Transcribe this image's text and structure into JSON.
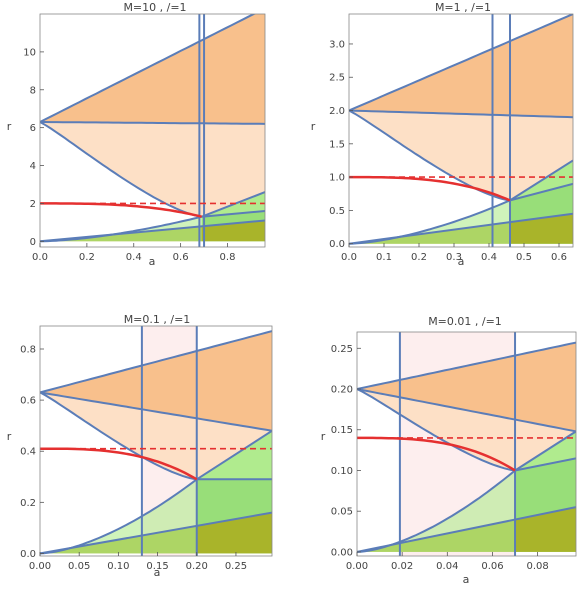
{
  "chart_data": [
    {
      "type": "area",
      "title": "M=10 , /=1",
      "xlabel": "a",
      "ylabel": "r",
      "xlim": [
        0,
        0.96
      ],
      "ylim": [
        -0.3,
        12
      ],
      "xticks": [
        "0.0",
        "0.2",
        "0.4",
        "0.6",
        "0.8"
      ],
      "xtick_values": [
        0,
        0.2,
        0.4,
        0.6,
        0.8
      ],
      "yticks": [
        "0",
        "2",
        "4",
        "6",
        "8",
        "10"
      ],
      "ytick_values": [
        0,
        2,
        4,
        6,
        8,
        10
      ],
      "r_top": 6.3,
      "r_red": 2.0,
      "a_crit": 0.69,
      "r_crit": 1.3,
      "vlines": [
        0.68,
        0.7
      ],
      "upper_end": 12.3,
      "mid_end": 6.2,
      "green_end": [
        2.6,
        1.6,
        1.1
      ],
      "pink_band": null
    },
    {
      "type": "area",
      "title": "M=1 , /=1",
      "xlabel": "a",
      "ylabel": "r",
      "xlim": [
        0,
        0.64
      ],
      "ylim": [
        -0.05,
        3.45
      ],
      "xticks": [
        "0.0",
        "0.1",
        "0.2",
        "0.3",
        "0.4",
        "0.5",
        "0.6"
      ],
      "xtick_values": [
        0,
        0.1,
        0.2,
        0.3,
        0.4,
        0.5,
        0.6
      ],
      "yticks": [
        "0.0",
        "0.5",
        "1.0",
        "1.5",
        "2.0",
        "2.5",
        "3.0"
      ],
      "ytick_values": [
        0,
        0.5,
        1.0,
        1.5,
        2.0,
        2.5,
        3.0
      ],
      "r_top": 2.0,
      "r_red": 1.0,
      "a_crit": 0.46,
      "r_crit": 0.65,
      "vlines": [
        0.41,
        0.46
      ],
      "upper_end": 3.45,
      "mid_end": 1.9,
      "green_end": [
        1.25,
        0.9,
        0.45
      ],
      "pink_band": null
    },
    {
      "type": "area",
      "title": "M=0.1 , /=1",
      "xlabel": "a",
      "ylabel": "r",
      "xlim": [
        0,
        0.296
      ],
      "ylim": [
        -0.01,
        0.89
      ],
      "xticks": [
        "0.00",
        "0.05",
        "0.10",
        "0.15",
        "0.20",
        "0.25"
      ],
      "xtick_values": [
        0,
        0.05,
        0.1,
        0.15,
        0.2,
        0.25
      ],
      "yticks": [
        "0.0",
        "0.2",
        "0.4",
        "0.6",
        "0.8"
      ],
      "ytick_values": [
        0,
        0.2,
        0.4,
        0.6,
        0.8
      ],
      "r_top": 0.63,
      "r_red": 0.41,
      "a_crit": 0.2,
      "r_crit": 0.29,
      "vlines": [
        0.13,
        0.2
      ],
      "upper_end": 0.87,
      "mid_end": 0.48,
      "green_end": [
        0.48,
        0.29,
        0.16
      ],
      "pink_band": [
        0.13,
        0.2
      ]
    },
    {
      "type": "area",
      "title": "M=0.01 , /=1",
      "xlabel": "a",
      "ylabel": "r",
      "xlim": [
        0,
        0.097
      ],
      "ylim": [
        -0.005,
        0.27
      ],
      "xticks": [
        "0.00",
        "0.02",
        "0.04",
        "0.06",
        "0.08"
      ],
      "xtick_values": [
        0,
        0.02,
        0.04,
        0.06,
        0.08
      ],
      "yticks": [
        "0.00",
        "0.05",
        "0.10",
        "0.15",
        "0.20",
        "0.25"
      ],
      "ytick_values": [
        0,
        0.05,
        0.1,
        0.15,
        0.2,
        0.25
      ],
      "r_top": 0.2,
      "r_red": 0.14,
      "a_crit": 0.07,
      "r_crit": 0.1,
      "vlines": [
        0.019,
        0.07
      ],
      "upper_end": 0.257,
      "mid_end": 0.148,
      "green_end": [
        0.148,
        0.115,
        0.055
      ],
      "pink_band": [
        0.019,
        0.07
      ]
    }
  ],
  "colors": {
    "orange": "#f8c08c",
    "peach": "#fde0c6",
    "pink": "#fdeeee",
    "lightgreen": "#b0eb8e",
    "green": "#8fd870",
    "olive": "#a9b42a",
    "boundary": "#5b7db8",
    "red": "#e53030"
  }
}
